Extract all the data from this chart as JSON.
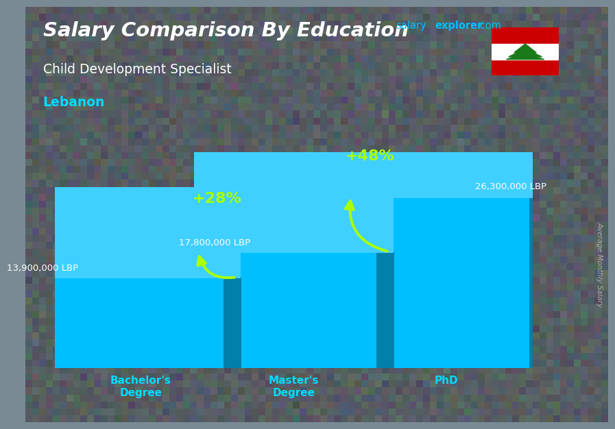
{
  "title_line1": "Salary Comparison By Education",
  "subtitle": "Child Development Specialist",
  "country": "Lebanon",
  "ylabel": "Average Monthly Salary",
  "categories": [
    "Bachelor's\nDegree",
    "Master's\nDegree",
    "PhD"
  ],
  "values": [
    13900000,
    17800000,
    26300000
  ],
  "value_labels": [
    "13,900,000 LBP",
    "17,800,000 LBP",
    "26,300,000 LBP"
  ],
  "pct_labels": [
    "+28%",
    "+48%"
  ],
  "bar_color_main": "#00bfff",
  "bar_color_side": "#0080aa",
  "bar_color_top": "#40d0ff",
  "background_color": "#7a8a95",
  "title_color": "#ffffff",
  "subtitle_color": "#ffffff",
  "country_color": "#00ddff",
  "xtick_color": "#00ddff",
  "label_color": "#ffffff",
  "pct_color": "#aaff00",
  "arrow_color": "#aaff00",
  "watermark_salary": "salary",
  "watermark_explorer": "explorer",
  "watermark_com": ".com",
  "watermark_color_salary": "#00bfff",
  "watermark_color_explorer": "#00bfff",
  "watermark_color_com": "#00bfff",
  "ylim": [
    0,
    33000000
  ],
  "bar_width": 0.38,
  "bar_positions": [
    0.18,
    0.5,
    0.82
  ]
}
